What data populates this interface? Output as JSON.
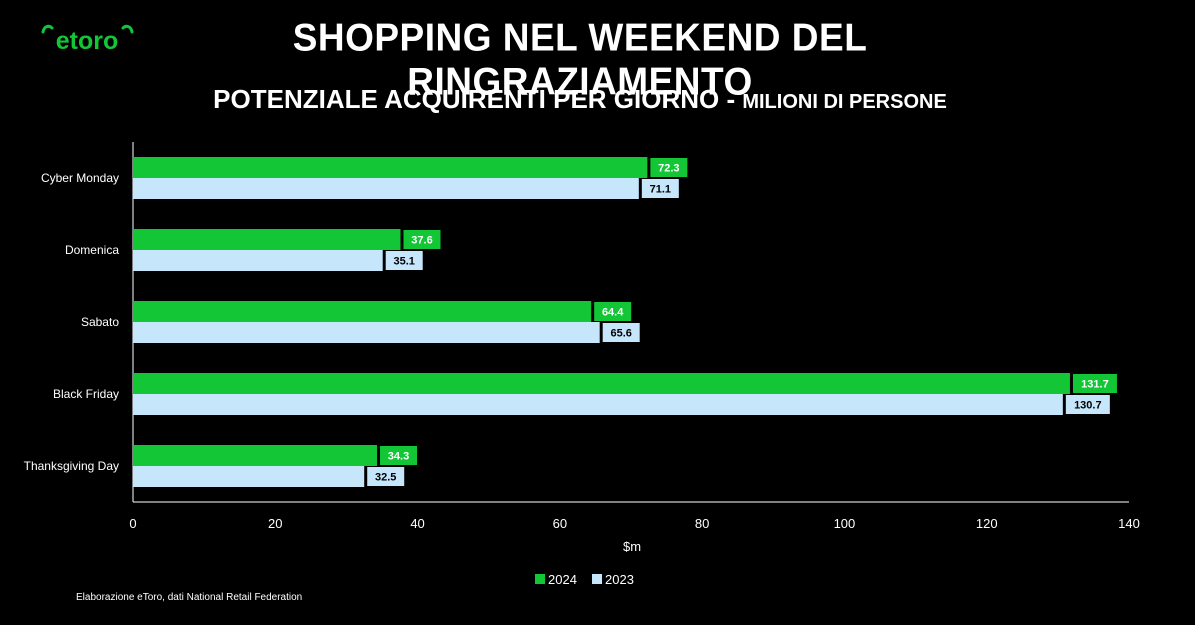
{
  "brand": {
    "logo_text": "etoro",
    "accent": "#13c636"
  },
  "title": "SHOPPING NEL WEEKEND DEL RINGRAZIAMENTO",
  "subtitle": {
    "main": "POTENZIALE ACQUIRENTI PER GIORNO - ",
    "unit": "MILIONI DI PERSONE"
  },
  "source": "Elaborazione eToro, dati National Retail Federation",
  "chart_data": {
    "type": "bar",
    "orientation": "horizontal",
    "categories": [
      "Cyber Monday",
      "Domenica",
      "Sabato",
      "Black Friday",
      "Thanksgiving Day"
    ],
    "series": [
      {
        "name": "2024",
        "values": [
          72.3,
          37.6,
          64.4,
          131.7,
          34.3
        ],
        "color": "#13c636",
        "label_text_color": "#ffffff"
      },
      {
        "name": "2023",
        "values": [
          71.1,
          35.1,
          65.6,
          130.7,
          32.5
        ],
        "color": "#c5e6fb",
        "label_text_color": "#000000"
      }
    ],
    "xlabel": "$m",
    "xlim": [
      0,
      140
    ],
    "xticks": [
      0,
      20,
      40,
      60,
      80,
      100,
      120,
      140
    ],
    "grid": false,
    "legend_position": "bottom",
    "data_labels": true
  }
}
